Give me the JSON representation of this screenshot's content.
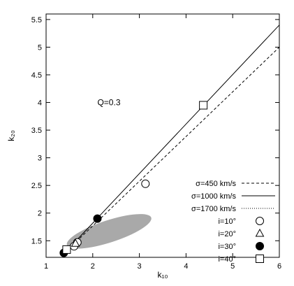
{
  "chart_data": {
    "type": "scatter",
    "xlabel": "k₁₀",
    "ylabel": "k₂₀",
    "xlim": [
      1,
      6
    ],
    "ylim": [
      1.2,
      5.6
    ],
    "x_ticks": [
      1,
      2,
      3,
      4,
      5,
      6
    ],
    "y_ticks": [
      1.5,
      2,
      2.5,
      3,
      3.5,
      4,
      4.5,
      5,
      5.5
    ],
    "x_tick_labels": [
      "1",
      "2",
      "3",
      "4",
      "5",
      "6"
    ],
    "y_tick_labels": [
      "1.5",
      "2",
      "2.5",
      "3",
      "3.5",
      "4",
      "4.5",
      "5",
      "5.5"
    ],
    "grid": false,
    "legend_position": "bottom-right",
    "annotation": "Q=0.3",
    "annotation_at": {
      "x": 2.1,
      "y": 4.0
    },
    "shaded_region": {
      "name": "observed region",
      "color": "#a9a9a9",
      "center": {
        "x": 2.35,
        "y": 1.67
      },
      "semi_axes": {
        "x": 0.95,
        "y": 0.2
      },
      "tilt_deg": 18
    },
    "lines": [
      {
        "name": "σ=450 km/s",
        "style": "dashed",
        "points": [
          [
            1.42,
            1.3
          ],
          [
            6.0,
            5.0
          ]
        ]
      },
      {
        "name": "σ=1000 km/s",
        "style": "solid",
        "points": [
          [
            1.42,
            1.3
          ],
          [
            6.0,
            5.4
          ]
        ]
      },
      {
        "name": "σ=1700 km/s",
        "style": "dotted",
        "points": [
          [
            1.42,
            1.3
          ],
          [
            2.1,
            1.9
          ]
        ]
      }
    ],
    "markers": [
      {
        "name": "i=10°",
        "symbol": "open-circle",
        "points": [
          [
            1.6,
            1.4
          ],
          [
            1.67,
            1.47
          ],
          [
            3.13,
            2.53
          ]
        ]
      },
      {
        "name": "i=20°",
        "symbol": "open-triangle",
        "points": [
          [
            1.63,
            1.45
          ]
        ]
      },
      {
        "name": "i=30°",
        "symbol": "filled-circle",
        "points": [
          [
            1.38,
            1.28
          ],
          [
            2.1,
            1.9
          ]
        ]
      },
      {
        "name": "i=40°",
        "symbol": "open-square",
        "points": [
          [
            1.44,
            1.34
          ],
          [
            4.37,
            3.95
          ]
        ]
      }
    ],
    "legend_line_labels": [
      "σ=450 km/s",
      "σ=1000 km/s",
      "σ=1700 km/s"
    ],
    "legend_marker_labels": [
      "i=10°",
      "i=20°",
      "i=30°",
      "i=40°"
    ]
  }
}
